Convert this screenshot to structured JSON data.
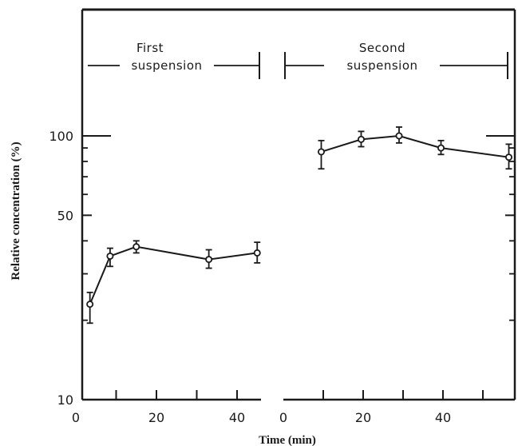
{
  "chart_data": {
    "type": "line",
    "ylabel": "Relative concentration (%)",
    "xlabel": "Time (min)",
    "y_scale": "log",
    "ylim": [
      10,
      200
    ],
    "y_ticks": [
      10,
      50,
      100
    ],
    "y_tick_labels": [
      "10",
      "50",
      "100"
    ],
    "y_minor_ticks": [
      20,
      30,
      40,
      60,
      70,
      80,
      90
    ],
    "grid": false,
    "segments": [
      {
        "label_line1": "First",
        "label_line2": "suspension",
        "xlim": [
          0,
          47
        ],
        "x_ticks": [
          0,
          10,
          20,
          30,
          40
        ],
        "x_tick_labels": [
          "0",
          "",
          "20",
          "",
          "40"
        ],
        "series": [
          {
            "x": [
              3.5,
              8.5,
              15,
              33,
              45
            ],
            "y": [
              23,
              35,
              38,
              34,
              36
            ],
            "y_err_low": [
              19.5,
              32,
              36,
              31.5,
              33
            ],
            "y_err_high": [
              25.5,
              37.5,
              40,
              37,
              39.5
            ]
          }
        ]
      },
      {
        "label_line1": "Second",
        "label_line2": "suspension",
        "xlim": [
          0,
          57
        ],
        "x_ticks": [
          0,
          10,
          20,
          30,
          40,
          50
        ],
        "x_tick_labels": [
          "0",
          "",
          "20",
          "",
          "40",
          ""
        ],
        "series": [
          {
            "x": [
              9.5,
              19.5,
              29,
              39.5,
              56.5
            ],
            "y": [
              87,
              97,
              100,
              90,
              83
            ],
            "y_err_low": [
              75,
              91,
              94,
              85,
              75
            ],
            "y_err_high": [
              96,
              104,
              108,
              96,
              93
            ]
          }
        ]
      }
    ]
  }
}
